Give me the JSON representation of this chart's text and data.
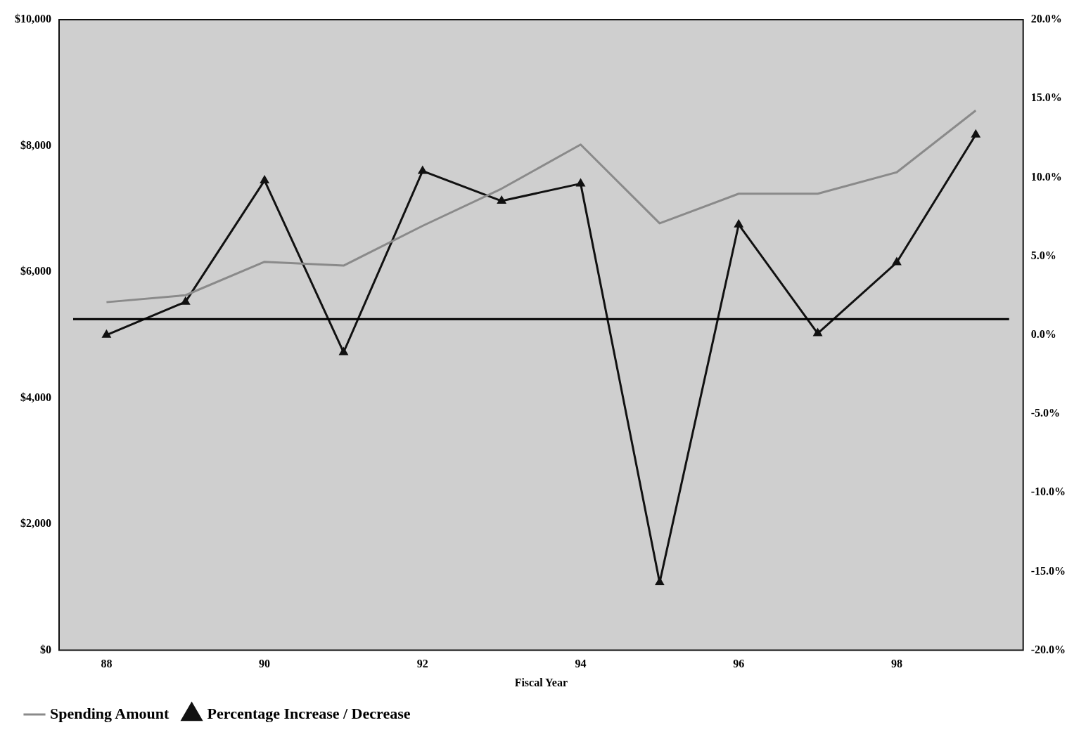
{
  "chart_data": {
    "type": "line",
    "xlabel": "Fiscal Year",
    "x": [
      88,
      89,
      90,
      91,
      92,
      93,
      94,
      95,
      96,
      97,
      98,
      99
    ],
    "xlim": [
      87.4,
      99.6
    ],
    "xticks": [
      88,
      90,
      92,
      94,
      96,
      98
    ],
    "ylim": [
      0,
      10000
    ],
    "yticks": [
      {
        "value": 0,
        "label": "$0"
      },
      {
        "value": 2000,
        "label": "$2,000"
      },
      {
        "value": 4000,
        "label": "$4,000"
      },
      {
        "value": 6000,
        "label": "$6,000"
      },
      {
        "value": 8000,
        "label": "$8,000"
      },
      {
        "value": 10000,
        "label": "$10,000"
      }
    ],
    "y2lim": [
      -20,
      20
    ],
    "y2ticks": [
      {
        "value": -20,
        "label": "-20.0%"
      },
      {
        "value": -15,
        "label": "-15.0%"
      },
      {
        "value": -10,
        "label": "-10.0%"
      },
      {
        "value": -5,
        "label": "-5.0%"
      },
      {
        "value": 0,
        "label": "0.0%"
      },
      {
        "value": 5,
        "label": "5.0%"
      },
      {
        "value": 10,
        "label": "10.0%"
      },
      {
        "value": 15,
        "label": "15.0%"
      },
      {
        "value": 20,
        "label": "20.0%"
      }
    ],
    "series": [
      {
        "name": "Spending Amount",
        "color": "#8a8a8a",
        "marker": "none",
        "values": [
          5520,
          5630,
          6160,
          6100,
          6730,
          7320,
          8020,
          6770,
          7240,
          7240,
          7580,
          8560
        ]
      },
      {
        "name": "Percentage Increase / Decrease",
        "color": "#111111",
        "marker": "triangle",
        "axis": "y2",
        "values": [
          0.0,
          2.1,
          9.8,
          -1.1,
          10.4,
          8.5,
          9.6,
          -15.7,
          7.0,
          0.1,
          4.6,
          12.7
        ]
      }
    ],
    "ref_lines": [
      {
        "axis": "y2",
        "value": 1,
        "color": "#000000"
      }
    ],
    "grid": false,
    "legend": "bottom left"
  }
}
